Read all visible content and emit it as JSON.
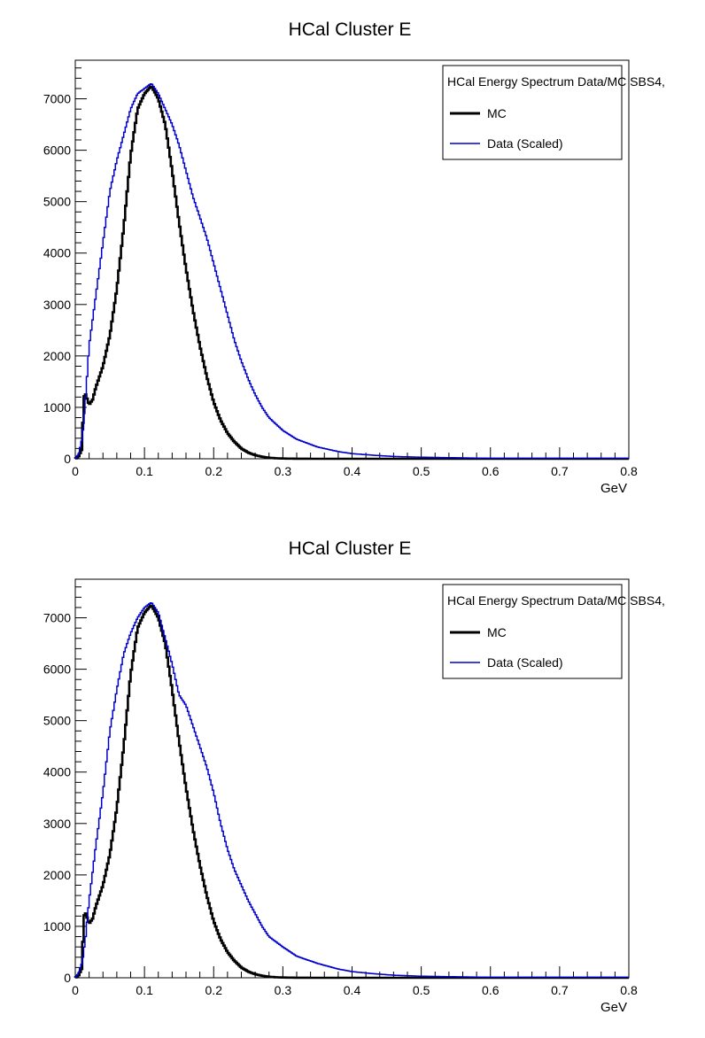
{
  "chart_data": [
    {
      "type": "line",
      "title": "HCal Cluster E",
      "xlabel": "GeV",
      "ylabel": "",
      "xlim": [
        0,
        0.8
      ],
      "ylim": [
        0,
        7750
      ],
      "xticks": [
        "0",
        "0.1",
        "0.2",
        "0.3",
        "0.4",
        "0.5",
        "0.6",
        "0.7",
        "0.8"
      ],
      "yticks": [
        "0",
        "1000",
        "2000",
        "3000",
        "4000",
        "5000",
        "6000",
        "7000"
      ],
      "xtick_values": [
        0,
        0.1,
        0.2,
        0.3,
        0.4,
        0.5,
        0.6,
        0.7,
        0.8
      ],
      "ytick_values": [
        0,
        1000,
        2000,
        3000,
        4000,
        5000,
        6000,
        7000
      ],
      "legend": {
        "header": "HCal Energy Spectrum Data/MC SBS4,",
        "placement": "top-right",
        "entries": [
          "MC",
          "Data (Scaled)"
        ]
      },
      "grid": false,
      "series": [
        {
          "name": "MC",
          "color": "#000000",
          "x": [
            0,
            0.005,
            0.01,
            0.012,
            0.015,
            0.02,
            0.025,
            0.03,
            0.04,
            0.05,
            0.06,
            0.07,
            0.08,
            0.09,
            0.1,
            0.11,
            0.12,
            0.13,
            0.14,
            0.15,
            0.16,
            0.17,
            0.18,
            0.19,
            0.2,
            0.21,
            0.22,
            0.23,
            0.24,
            0.25,
            0.26,
            0.27,
            0.28,
            0.29,
            0.3,
            0.32,
            0.35,
            0.4,
            0.5,
            0.6,
            0.7,
            0.8
          ],
          "values": [
            0,
            50,
            200,
            1200,
            1250,
            1050,
            1150,
            1400,
            1800,
            2400,
            3300,
            4500,
            5900,
            6800,
            7100,
            7250,
            7000,
            6500,
            5600,
            4600,
            3700,
            2900,
            2200,
            1600,
            1100,
            750,
            500,
            330,
            200,
            120,
            70,
            40,
            20,
            10,
            5,
            2,
            0,
            0,
            0,
            0,
            0,
            0
          ]
        },
        {
          "name": "Data (Scaled)",
          "color": "#0000cc",
          "x": [
            0,
            0.005,
            0.01,
            0.015,
            0.02,
            0.03,
            0.04,
            0.05,
            0.06,
            0.07,
            0.08,
            0.09,
            0.1,
            0.11,
            0.12,
            0.13,
            0.14,
            0.15,
            0.16,
            0.17,
            0.18,
            0.19,
            0.2,
            0.21,
            0.22,
            0.23,
            0.24,
            0.25,
            0.26,
            0.27,
            0.28,
            0.3,
            0.32,
            0.35,
            0.38,
            0.4,
            0.43,
            0.46,
            0.5,
            0.55,
            0.6,
            0.7,
            0.8
          ],
          "values": [
            0,
            100,
            400,
            1200,
            2200,
            3200,
            4200,
            5200,
            5800,
            6300,
            6800,
            7100,
            7200,
            7300,
            7100,
            6800,
            6500,
            6100,
            5600,
            5100,
            4700,
            4300,
            3800,
            3300,
            2800,
            2300,
            1900,
            1550,
            1250,
            1000,
            800,
            550,
            380,
            230,
            140,
            100,
            70,
            45,
            30,
            20,
            10,
            10,
            10
          ]
        }
      ]
    },
    {
      "type": "line",
      "title": "HCal Cluster E",
      "xlabel": "GeV",
      "ylabel": "",
      "xlim": [
        0,
        0.8
      ],
      "ylim": [
        0,
        7750
      ],
      "xticks": [
        "0",
        "0.1",
        "0.2",
        "0.3",
        "0.4",
        "0.5",
        "0.6",
        "0.7",
        "0.8"
      ],
      "yticks": [
        "0",
        "1000",
        "2000",
        "3000",
        "4000",
        "5000",
        "6000",
        "7000"
      ],
      "xtick_values": [
        0,
        0.1,
        0.2,
        0.3,
        0.4,
        0.5,
        0.6,
        0.7,
        0.8
      ],
      "ytick_values": [
        0,
        1000,
        2000,
        3000,
        4000,
        5000,
        6000,
        7000
      ],
      "legend": {
        "header": "HCal Energy Spectrum Data/MC SBS4,",
        "placement": "top-right",
        "entries": [
          "MC",
          "Data (Scaled)"
        ]
      },
      "grid": false,
      "series": [
        {
          "name": "MC",
          "color": "#000000",
          "x": [
            0,
            0.005,
            0.01,
            0.012,
            0.015,
            0.02,
            0.025,
            0.03,
            0.04,
            0.05,
            0.06,
            0.07,
            0.08,
            0.09,
            0.1,
            0.11,
            0.12,
            0.13,
            0.14,
            0.15,
            0.16,
            0.17,
            0.18,
            0.19,
            0.2,
            0.21,
            0.22,
            0.23,
            0.24,
            0.25,
            0.26,
            0.27,
            0.28,
            0.29,
            0.3,
            0.32,
            0.35,
            0.4,
            0.5,
            0.6,
            0.7,
            0.8
          ],
          "values": [
            0,
            50,
            200,
            1200,
            1250,
            1050,
            1150,
            1400,
            1800,
            2400,
            3300,
            4500,
            5900,
            6800,
            7100,
            7250,
            7000,
            6500,
            5600,
            4600,
            3700,
            2900,
            2200,
            1600,
            1100,
            750,
            500,
            330,
            200,
            120,
            70,
            40,
            20,
            10,
            5,
            2,
            0,
            0,
            0,
            0,
            0,
            0
          ]
        },
        {
          "name": "Data (Scaled)",
          "color": "#0000cc",
          "x": [
            0,
            0.005,
            0.01,
            0.015,
            0.02,
            0.03,
            0.04,
            0.05,
            0.06,
            0.07,
            0.08,
            0.09,
            0.1,
            0.11,
            0.12,
            0.13,
            0.14,
            0.15,
            0.16,
            0.17,
            0.18,
            0.19,
            0.2,
            0.21,
            0.22,
            0.23,
            0.24,
            0.25,
            0.26,
            0.27,
            0.28,
            0.3,
            0.32,
            0.35,
            0.38,
            0.4,
            0.43,
            0.46,
            0.5,
            0.55,
            0.6,
            0.7,
            0.8
          ],
          "values": [
            0,
            100,
            300,
            800,
            1500,
            2600,
            3600,
            4800,
            5600,
            6300,
            6700,
            7000,
            7200,
            7300,
            7100,
            6600,
            6100,
            5500,
            5300,
            4900,
            4500,
            4100,
            3600,
            3000,
            2500,
            2100,
            1800,
            1500,
            1250,
            1000,
            800,
            600,
            420,
            280,
            170,
            120,
            80,
            50,
            30,
            20,
            10,
            10,
            10
          ]
        }
      ]
    }
  ]
}
